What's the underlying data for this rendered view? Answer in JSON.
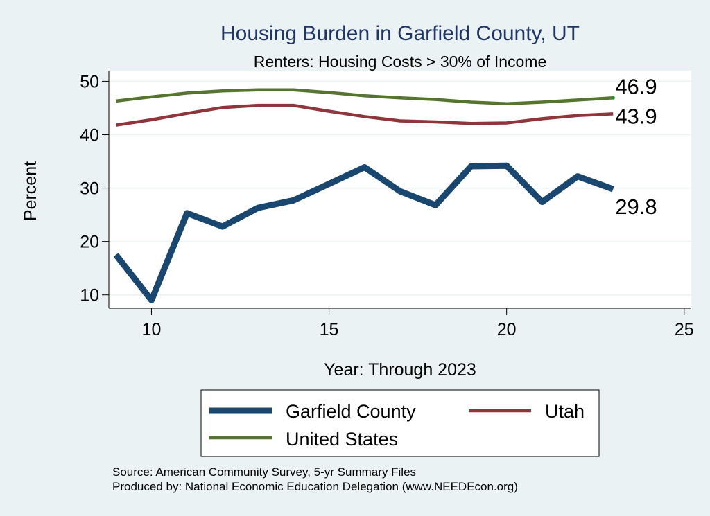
{
  "chart_data": {
    "type": "line",
    "title": "Housing Burden in Garfield County, UT",
    "subtitle": "Renters: Housing Costs > 30% of Income",
    "xlabel": "Year: Through 2023",
    "ylabel": "Percent",
    "xlim": [
      8.8,
      25.2
    ],
    "ylim": [
      7.5,
      52
    ],
    "xticks": [
      10,
      15,
      20,
      25
    ],
    "yticks": [
      10,
      20,
      30,
      40,
      50
    ],
    "grid": true,
    "series": [
      {
        "name": "Garfield County",
        "color": "#1a476f",
        "x": [
          9,
          10,
          11,
          12,
          13,
          14,
          15,
          16,
          17,
          18,
          19,
          20,
          21,
          22,
          23
        ],
        "values": [
          17.5,
          9.0,
          25.3,
          22.8,
          26.3,
          27.7,
          30.8,
          33.9,
          29.4,
          26.8,
          34.1,
          34.2,
          27.4,
          32.2,
          29.8
        ],
        "end_label": "29.8"
      },
      {
        "name": "Utah",
        "color": "#90353b",
        "x": [
          9,
          10,
          11,
          12,
          13,
          14,
          15,
          16,
          17,
          18,
          19,
          20,
          21,
          22,
          23
        ],
        "values": [
          41.8,
          42.8,
          44.0,
          45.1,
          45.5,
          45.5,
          44.4,
          43.4,
          42.6,
          42.4,
          42.1,
          42.2,
          43.0,
          43.6,
          43.9
        ],
        "end_label": "43.9"
      },
      {
        "name": "United States",
        "color": "#55752f",
        "x": [
          9,
          10,
          11,
          12,
          13,
          14,
          15,
          16,
          17,
          18,
          19,
          20,
          21,
          22,
          23
        ],
        "values": [
          46.3,
          47.1,
          47.8,
          48.2,
          48.4,
          48.4,
          47.9,
          47.3,
          46.9,
          46.6,
          46.1,
          45.8,
          46.1,
          46.5,
          46.9
        ],
        "end_label": "46.9"
      }
    ],
    "legend": {
      "placement": "bottom",
      "columns": 2
    }
  },
  "footer": {
    "source": "Source: American Community Survey, 5-yr Summary Files",
    "produced": "Produced by: National Economic Education Delegation (www.NEEDEcon.org)"
  }
}
